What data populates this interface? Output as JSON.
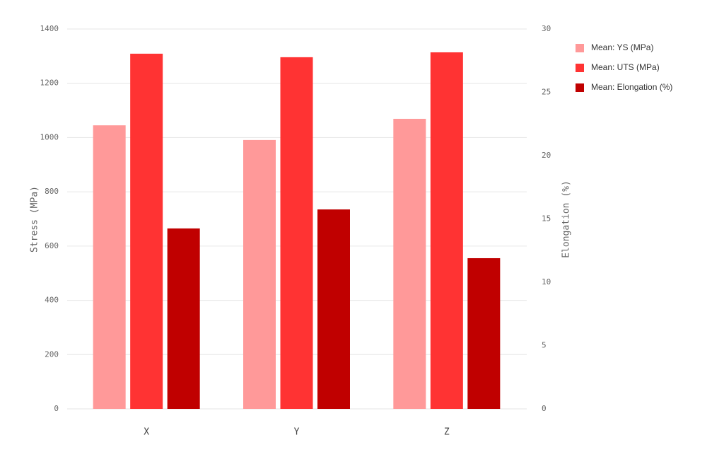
{
  "chart_data": {
    "type": "bar",
    "categories": [
      "X",
      "Y",
      "Z"
    ],
    "y_label": "Stress (MPa)",
    "y2_label": "Elongation (%)",
    "series": [
      {
        "name": "Mean: YS (MPa)",
        "color": "#ff9999",
        "values": [
          1045,
          991,
          1069
        ]
      },
      {
        "name": "Mean: UTS (MPa)",
        "color": "#ff3333",
        "values": [
          1309,
          1296,
          1314
        ]
      },
      {
        "name": "Mean: Elongation (%)",
        "color": "#c00000",
        "axis": "y2",
        "values": [
          14.25,
          15.75,
          11.9
        ]
      }
    ],
    "ylim": [
      0,
      1400
    ],
    "yticks": [
      0,
      200,
      400,
      600,
      800,
      1000,
      1200,
      1400
    ],
    "y2lim": [
      0,
      30
    ],
    "y2ticks": [
      0,
      5,
      10,
      15,
      20,
      25,
      30
    ],
    "grid": true,
    "legend": "right"
  }
}
